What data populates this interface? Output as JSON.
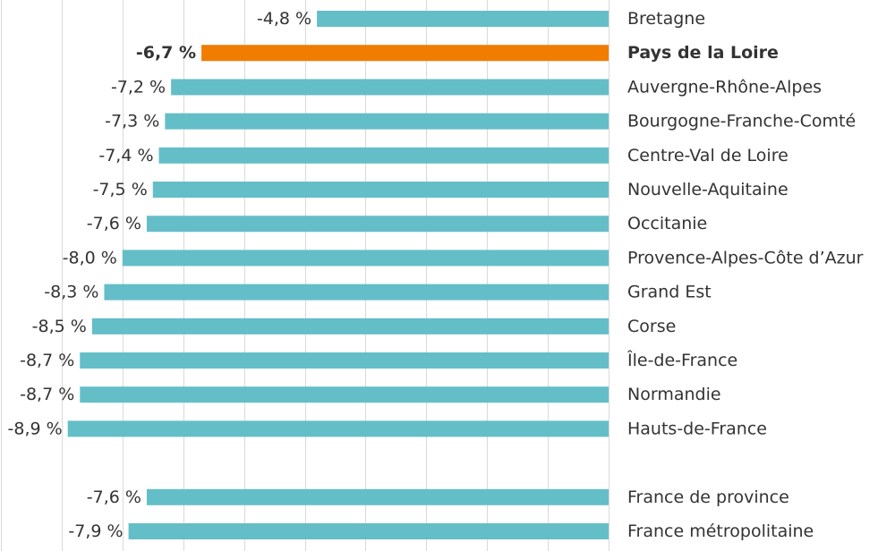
{
  "chart_data": {
    "type": "bar",
    "orientation": "horizontal",
    "grid": true,
    "colors": {
      "bar": "#64BEC8",
      "highlight": "#F07D00",
      "text": "#333333",
      "grid": "#D9D9D9"
    },
    "xlim": [
      -10,
      0
    ],
    "highlight_category": "Pays de la Loire",
    "categories": [
      "Bretagne",
      "Pays de la Loire",
      "Auvergne-Rhône-Alpes",
      "Bourgogne-Franche-Comté",
      "Centre-Val de Loire",
      "Nouvelle-Aquitaine",
      "Occitanie",
      "Provence-Alpes-Côte d’Azur",
      "Grand Est",
      "Corse",
      "Île-de-France",
      "Normandie",
      "Hauts-de-France",
      "France  de province",
      "France métropolitaine"
    ],
    "values": [
      -4.8,
      -6.7,
      -7.2,
      -7.3,
      -7.4,
      -7.5,
      -7.6,
      -8.0,
      -8.3,
      -8.5,
      -8.7,
      -8.7,
      -8.9,
      -7.6,
      -7.9
    ],
    "value_labels": [
      "-4,8 %",
      "-6,7 %",
      "-7,2 %",
      "-7,3 %",
      "-7,4 %",
      "-7,5 %",
      "-7,6 %",
      "-8,0 %",
      "-8,3 %",
      "-8,5 %",
      "-8,7 %",
      "-8,7 %",
      "-8,9 %",
      "-7,6 %",
      "-7,9 %"
    ]
  }
}
